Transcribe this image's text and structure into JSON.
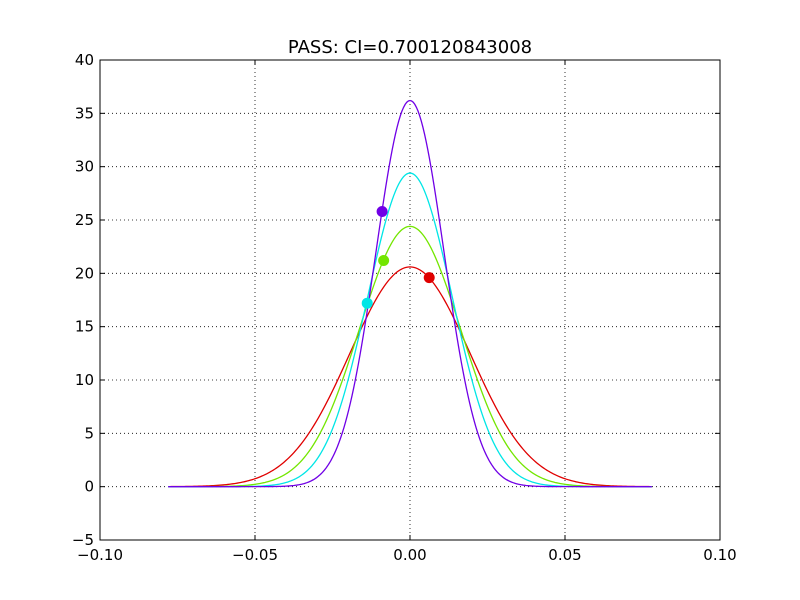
{
  "chart_data": {
    "type": "line",
    "title": "PASS: CI=0.700120843008",
    "xlabel": "",
    "ylabel": "",
    "xlim": [
      -0.1,
      0.1
    ],
    "ylim": [
      -5,
      40
    ],
    "grid": true,
    "x_ticks": [
      -0.1,
      -0.05,
      0.0,
      0.05,
      0.1
    ],
    "x_tick_labels": [
      "−0.10",
      "−0.05",
      "0.00",
      "0.05",
      "0.10"
    ],
    "y_ticks": [
      -5,
      0,
      5,
      10,
      15,
      20,
      25,
      30,
      35,
      40
    ],
    "y_tick_labels": [
      "−5",
      "0",
      "5",
      "10",
      "15",
      "20",
      "25",
      "30",
      "35",
      "40"
    ],
    "x_range": [
      -0.078,
      0.078
    ],
    "series": [
      {
        "color": "#e00000",
        "peak": 20.6,
        "center": 0.0,
        "sigma": 0.0194,
        "marker": {
          "x": 0.0062,
          "y": 19.6
        }
      },
      {
        "color": "#73e600",
        "peak": 24.4,
        "center": 0.0,
        "sigma": 0.0163,
        "marker": {
          "x": -0.0085,
          "y": 21.2
        }
      },
      {
        "color": "#00e6e6",
        "peak": 29.4,
        "center": 0.0,
        "sigma": 0.0136,
        "marker": {
          "x": -0.0138,
          "y": 17.2
        }
      },
      {
        "color": "#7000e6",
        "peak": 36.2,
        "center": 0.0,
        "sigma": 0.011,
        "marker": {
          "x": -0.009,
          "y": 25.8
        }
      }
    ]
  }
}
